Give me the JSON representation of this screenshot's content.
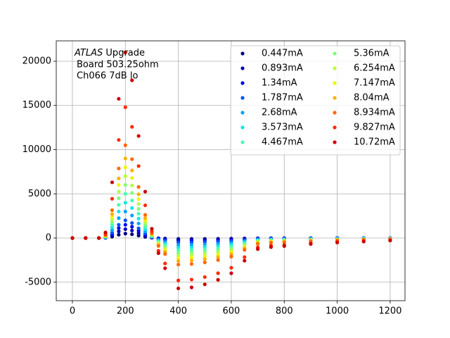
{
  "chart_data": {
    "type": "scatter",
    "annotation": [
      "ATLAS",
      "Upgrade",
      "Board 503.25ohm",
      "Ch066 7dB lo"
    ],
    "x": [
      0,
      50,
      100,
      125,
      150,
      175,
      200,
      225,
      250,
      275,
      300,
      325,
      350,
      400,
      450,
      500,
      550,
      600,
      650,
      700,
      750,
      800,
      900,
      1000,
      1100,
      1200
    ],
    "series": [
      {
        "name": "0.447mA",
        "color": "#00007f",
        "values": [
          0,
          0,
          0,
          15,
          150,
          375,
          500,
          425,
          275,
          125,
          25,
          -30,
          -60,
          -100,
          -98,
          -92,
          -83,
          -70,
          -45,
          -22,
          -18,
          -16,
          -12,
          -9,
          -7,
          -5
        ]
      },
      {
        "name": "0.893mA",
        "color": "#0000b8",
        "values": [
          0,
          0,
          0,
          30,
          300,
          750,
          1000,
          850,
          550,
          250,
          50,
          -60,
          -120,
          -200,
          -196,
          -184,
          -166,
          -140,
          -90,
          -44,
          -36,
          -32,
          -24,
          -18,
          -14,
          -10
        ]
      },
      {
        "name": "1.34mA",
        "color": "#0000f1",
        "values": [
          0,
          0,
          0,
          45,
          450,
          1125,
          1500,
          1275,
          825,
          375,
          75,
          -105,
          -210,
          -350,
          -343,
          -322,
          -291,
          -245,
          -158,
          -77,
          -63,
          -56,
          -42,
          -32,
          -25,
          -18
        ]
      },
      {
        "name": "1.787mA",
        "color": "#0050ff",
        "values": [
          0,
          0,
          0,
          60,
          600,
          1500,
          2000,
          1700,
          1100,
          500,
          100,
          -150,
          -300,
          -500,
          -490,
          -460,
          -415,
          -350,
          -225,
          -110,
          -90,
          -80,
          -60,
          -45,
          -35,
          -25
        ]
      },
      {
        "name": "2.68mA",
        "color": "#00a4ff",
        "values": [
          0,
          0,
          0,
          90,
          900,
          2250,
          3000,
          2550,
          1650,
          750,
          150,
          -240,
          -480,
          -800,
          -784,
          -736,
          -664,
          -560,
          -360,
          -176,
          -144,
          -128,
          -96,
          -72,
          -56,
          -40
        ]
      },
      {
        "name": "3.573mA",
        "color": "#13e8e3",
        "values": [
          0,
          0,
          0,
          120,
          1200,
          3000,
          4000,
          3400,
          2200,
          1000,
          200,
          -330,
          -660,
          -1100,
          -1078,
          -1012,
          -913,
          -770,
          -495,
          -242,
          -198,
          -176,
          -132,
          -99,
          -77,
          -55
        ]
      },
      {
        "name": "4.467mA",
        "color": "#44ffb2",
        "values": [
          0,
          0,
          0,
          150,
          1500,
          3750,
          5000,
          4250,
          2750,
          1250,
          250,
          -420,
          -840,
          -1400,
          -1372,
          -1288,
          -1162,
          -980,
          -630,
          -308,
          -252,
          -224,
          -168,
          -126,
          -98,
          -70
        ]
      },
      {
        "name": "5.36mA",
        "color": "#7dff7a",
        "values": [
          0,
          0,
          0,
          180,
          1800,
          4500,
          6000,
          5100,
          3300,
          1500,
          300,
          -510,
          -1020,
          -1700,
          -1666,
          -1564,
          -1411,
          -1190,
          -765,
          -374,
          -306,
          -272,
          -204,
          -153,
          -119,
          -85
        ]
      },
      {
        "name": "6.254mA",
        "color": "#b4ff43",
        "values": [
          0,
          0,
          0,
          210,
          2100,
          5250,
          7000,
          5950,
          3850,
          1750,
          350,
          -600,
          -1200,
          -2000,
          -1960,
          -1840,
          -1660,
          -1400,
          -900,
          -440,
          -360,
          -320,
          -240,
          -180,
          -140,
          -100
        ]
      },
      {
        "name": "7.147mA",
        "color": "#f1f406",
        "values": [
          0,
          0,
          0,
          240,
          2400,
          6000,
          8000,
          6800,
          4400,
          2000,
          400,
          -690,
          -1380,
          -2300,
          -2254,
          -2116,
          -1909,
          -1610,
          -1035,
          -506,
          -414,
          -368,
          -276,
          -207,
          -161,
          -115
        ]
      },
      {
        "name": "8.04mA",
        "color": "#ffb000",
        "values": [
          0,
          0,
          0,
          270,
          2700,
          6750,
          9000,
          7650,
          4950,
          2250,
          450,
          -780,
          -1560,
          -2600,
          -2548,
          -2392,
          -2158,
          -1820,
          -1170,
          -572,
          -468,
          -416,
          -312,
          -234,
          -182,
          -130
        ]
      },
      {
        "name": "8.934mA",
        "color": "#ff6a00",
        "values": [
          0,
          0,
          0,
          315,
          3150,
          7875,
          10500,
          8925,
          5775,
          2625,
          525,
          -900,
          -1800,
          -3000,
          -2940,
          -2760,
          -2490,
          -2100,
          -1350,
          -660,
          -540,
          -480,
          -360,
          -270,
          -210,
          -150
        ]
      },
      {
        "name": "9.827mA",
        "color": "#ff2a00",
        "values": [
          0,
          0,
          0,
          444,
          4440,
          11100,
          14800,
          12580,
          8140,
          3700,
          740,
          -1440,
          -2880,
          -4800,
          -4704,
          -4416,
          -3984,
          -3360,
          -2160,
          -1056,
          -864,
          -768,
          -576,
          -432,
          -336,
          -240
        ]
      },
      {
        "name": "10.72mA",
        "color": "#cc0000",
        "values": [
          0,
          0,
          0,
          630,
          6300,
          15750,
          21000,
          17850,
          11550,
          5250,
          1050,
          -1710,
          -3420,
          -5700,
          -5586,
          -5244,
          -4731,
          -3990,
          -2565,
          -1254,
          -1026,
          -912,
          -684,
          -513,
          -399,
          -285
        ]
      }
    ],
    "xlim": [
      -61,
      1256
    ],
    "ylim": [
      -7090,
      22310
    ],
    "xticks": [
      0,
      200,
      400,
      600,
      800,
      1000,
      1200
    ],
    "yticks": [
      -5000,
      0,
      5000,
      10000,
      15000,
      20000
    ],
    "grid": true,
    "legend": "upper right",
    "legend_columns": 2
  }
}
